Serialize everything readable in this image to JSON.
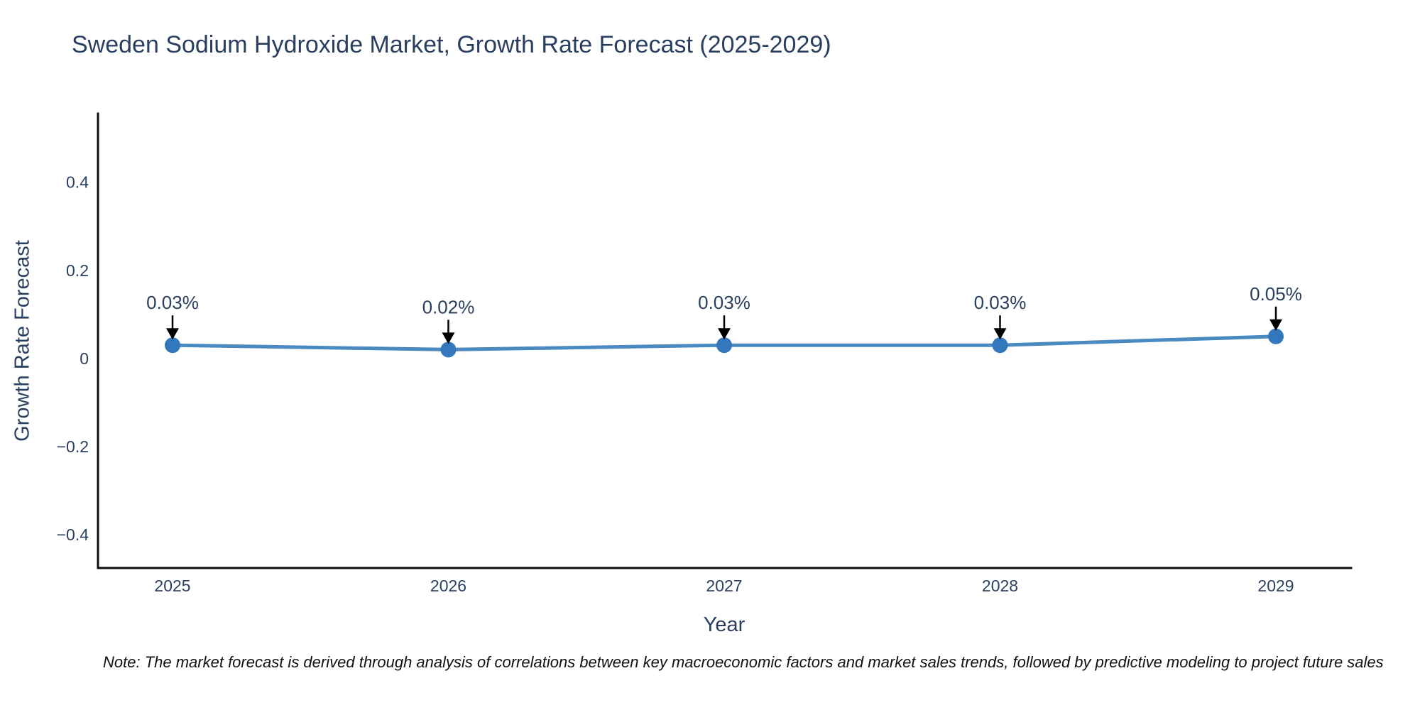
{
  "title": "Sweden Sodium Hydroxide Market, Growth Rate Forecast (2025-2029)",
  "note": "Note: The market forecast is derived through analysis of correlations between key macroeconomic factors and market sales trends, followed by predictive modeling to project future sales",
  "chart_data": {
    "type": "line",
    "title": "Sweden Sodium Hydroxide Market, Growth Rate Forecast (2025-2029)",
    "x": [
      2025,
      2026,
      2027,
      2028,
      2029
    ],
    "xtick_labels": [
      "2025",
      "2026",
      "2027",
      "2028",
      "2029"
    ],
    "series": [
      {
        "name": "Growth Rate Forecast",
        "values": [
          0.03,
          0.02,
          0.03,
          0.03,
          0.05
        ]
      }
    ],
    "point_labels": [
      "0.03%",
      "0.02%",
      "0.03%",
      "0.03%",
      "0.05%"
    ],
    "xlabel": "Year",
    "ylabel": "Growth Rate Forecast",
    "yticks": [
      0.4,
      0.2,
      0,
      -0.2,
      -0.4
    ],
    "ytick_labels": [
      "0.4",
      "0.2",
      "0",
      "−0.2",
      "−0.4"
    ],
    "ylim": [
      -0.476,
      0.556
    ],
    "grid": false,
    "legend_position": "none",
    "annotation_style": "text-with-down-arrow",
    "colors": {
      "line": "#4a8ac0",
      "marker": "#3377bd",
      "text": "#2a3f5f",
      "axis": "#0d0d0d",
      "arrow": "#000000",
      "note_text": "#111111",
      "background": "#ffffff"
    }
  }
}
